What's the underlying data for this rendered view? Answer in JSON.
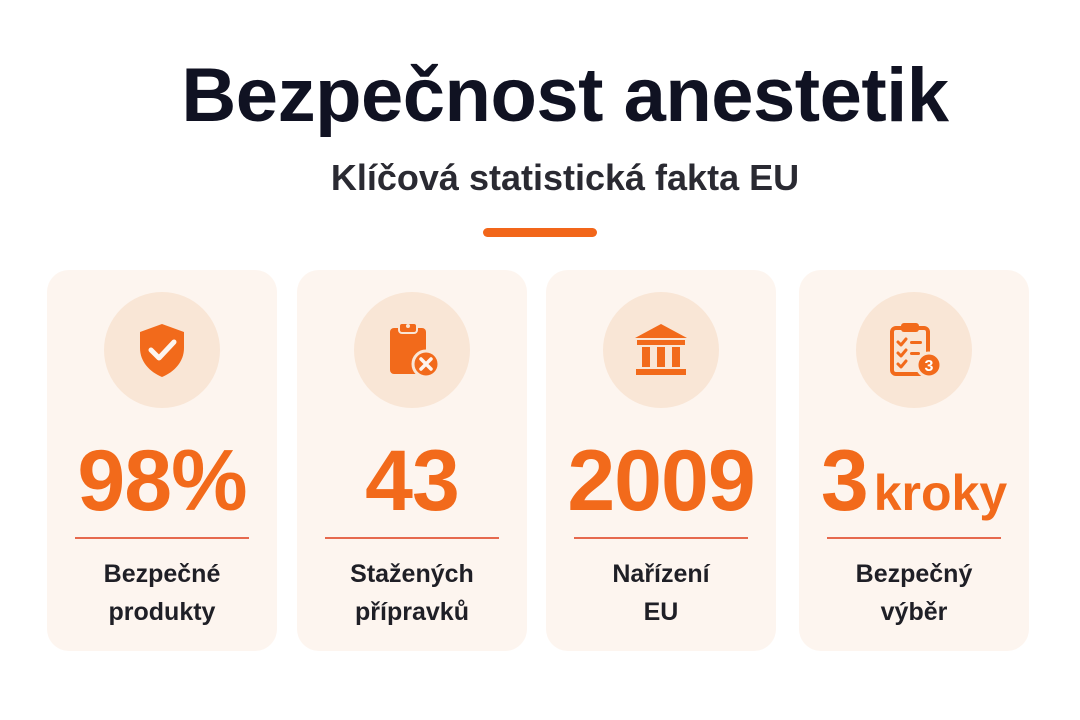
{
  "header": {
    "title": "Bezpečnost anestetik",
    "subtitle": "Klíčová statistická fakta EU"
  },
  "colors": {
    "accent": "#f26a1b",
    "card_bg": "#fdf5ef",
    "icon_circle": "#f9e6d6",
    "title": "#101222"
  },
  "cards": [
    {
      "icon": "shield-check-icon",
      "value": "98%",
      "unit": "",
      "label_lines": [
        "Bezpečné",
        "produkty"
      ]
    },
    {
      "icon": "clipboard-x-icon",
      "value": "43",
      "unit": "",
      "label_lines": [
        "Stažených",
        "přípravků"
      ]
    },
    {
      "icon": "institution-building-icon",
      "value": "2009",
      "unit": "",
      "label_lines": [
        "Nařízení",
        "EU"
      ]
    },
    {
      "icon": "checklist-3-icon",
      "value": "3",
      "unit": "kroky",
      "label_lines": [
        "Bezpečný",
        "výběr"
      ]
    }
  ]
}
